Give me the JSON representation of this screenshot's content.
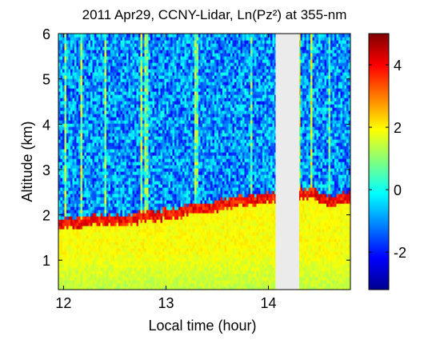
{
  "chart_data": {
    "type": "heatmap",
    "title": "2011 Apr29, CCNY-Lidar, Ln(Pz²) at 355-nm",
    "xlabel": "Local time (hour)",
    "ylabel": "Altitude (km)",
    "x_ticks": [
      "12",
      "13",
      "14"
    ],
    "y_ticks": [
      "1",
      "2",
      "3",
      "4",
      "5",
      "6"
    ],
    "xlim": [
      11.95,
      14.8
    ],
    "ylim": [
      0.35,
      6.0
    ],
    "data_gap_hours": [
      14.07,
      14.3
    ],
    "colorbar": {
      "range": [
        -3.2,
        5.0
      ],
      "ticks": [
        "4",
        "2",
        "0",
        "-2"
      ],
      "colormap": "jet",
      "colors": [
        "#00008f",
        "#0000ff",
        "#0080ff",
        "#00ffff",
        "#80ff80",
        "#ffff00",
        "#ff8000",
        "#ff0000",
        "#800000"
      ]
    },
    "layers": {
      "boundary_layer_top_km": [
        {
          "hour": 12.0,
          "km": 1.85
        },
        {
          "hour": 12.3,
          "km": 1.9
        },
        {
          "hour": 12.6,
          "km": 1.92
        },
        {
          "hour": 12.9,
          "km": 2.0
        },
        {
          "hour": 13.2,
          "km": 2.12
        },
        {
          "hour": 13.5,
          "km": 2.22
        },
        {
          "hour": 13.8,
          "km": 2.35
        },
        {
          "hour": 14.05,
          "km": 2.4
        },
        {
          "hour": 14.4,
          "km": 2.5
        },
        {
          "hour": 14.6,
          "km": 2.3
        },
        {
          "hour": 14.8,
          "km": 2.4
        }
      ],
      "boundary_layer_value": 1.9,
      "free_troposphere_value": -1.0,
      "layer_top_value": 4.5
    }
  }
}
